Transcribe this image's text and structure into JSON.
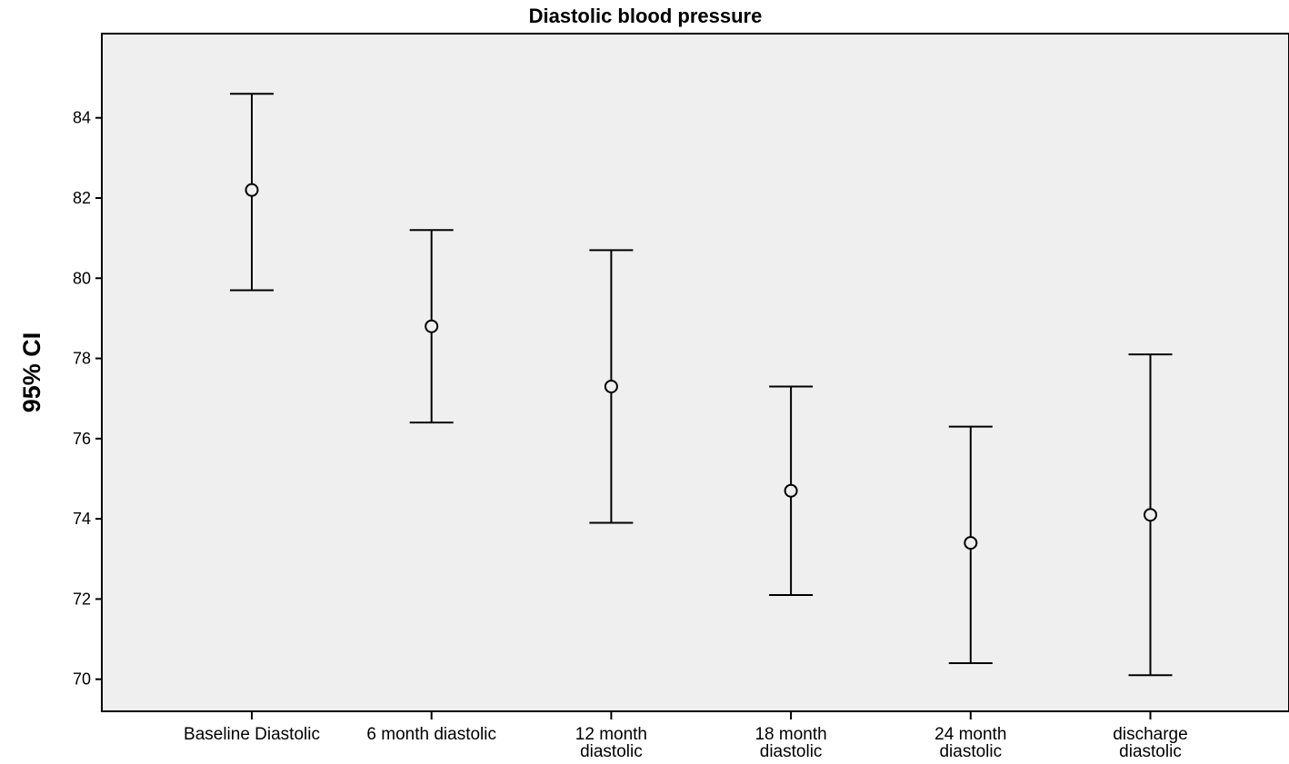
{
  "chart_data": {
    "type": "errorbar",
    "title": "Diastolic blood pressure",
    "xlabel": "",
    "ylabel": "95% CI",
    "ylim": [
      69.2,
      86.1
    ],
    "yticks": [
      70,
      72,
      74,
      76,
      78,
      80,
      82,
      84
    ],
    "grid": false,
    "categories": [
      [
        "Baseline Diastolic"
      ],
      [
        "6 month diastolic"
      ],
      [
        "12 month",
        "diastolic"
      ],
      [
        "18 month",
        "diastolic"
      ],
      [
        "24 month",
        "diastolic"
      ],
      [
        "discharge",
        "diastolic"
      ]
    ],
    "mean": [
      82.2,
      78.8,
      77.3,
      74.7,
      73.4,
      74.1
    ],
    "lower": [
      79.7,
      76.4,
      73.9,
      72.1,
      70.4,
      70.1
    ],
    "upper": [
      84.6,
      81.2,
      80.7,
      77.3,
      76.3,
      78.1
    ]
  },
  "colors": {
    "plot_background": "#efefef",
    "line": "#000000"
  }
}
